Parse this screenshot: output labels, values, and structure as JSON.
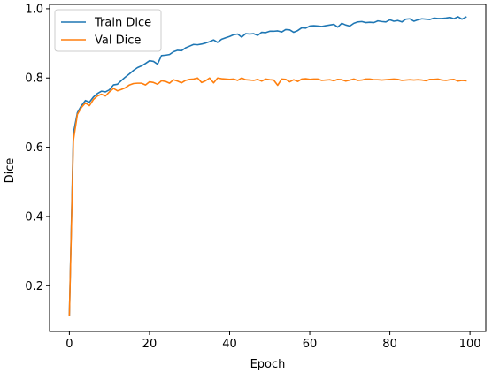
{
  "chart_data": {
    "type": "line",
    "title": "",
    "xlabel": "Epoch",
    "ylabel": "Dice",
    "xlim": [
      -4.95,
      103.95
    ],
    "ylim": [
      0.068,
      1.0125
    ],
    "xticks": [
      0,
      20,
      40,
      60,
      80,
      100
    ],
    "yticks": [
      0.2,
      0.4,
      0.6,
      0.8,
      1.0
    ],
    "ytick_labels": [
      "0.2",
      "0.4",
      "0.6",
      "0.8",
      "1.0"
    ],
    "grid": false,
    "legend_position": "upper-left",
    "x": [
      0,
      1,
      2,
      3,
      4,
      5,
      6,
      7,
      8,
      9,
      10,
      11,
      12,
      13,
      14,
      15,
      16,
      17,
      18,
      19,
      20,
      21,
      22,
      23,
      24,
      25,
      26,
      27,
      28,
      29,
      30,
      31,
      32,
      33,
      34,
      35,
      36,
      37,
      38,
      39,
      40,
      41,
      42,
      43,
      44,
      45,
      46,
      47,
      48,
      49,
      50,
      51,
      52,
      53,
      54,
      55,
      56,
      57,
      58,
      59,
      60,
      61,
      62,
      63,
      64,
      65,
      66,
      67,
      68,
      69,
      70,
      71,
      72,
      73,
      74,
      75,
      76,
      77,
      78,
      79,
      80,
      81,
      82,
      83,
      84,
      85,
      86,
      87,
      88,
      89,
      90,
      91,
      92,
      93,
      94,
      95,
      96,
      97,
      98,
      99
    ],
    "series": [
      {
        "name": "Train Dice",
        "color": "#1f77b4",
        "values": [
          0.115,
          0.64,
          0.7,
          0.72,
          0.735,
          0.73,
          0.745,
          0.755,
          0.762,
          0.76,
          0.766,
          0.78,
          0.782,
          0.793,
          0.803,
          0.812,
          0.822,
          0.83,
          0.835,
          0.842,
          0.85,
          0.848,
          0.84,
          0.865,
          0.866,
          0.868,
          0.876,
          0.88,
          0.879,
          0.887,
          0.892,
          0.897,
          0.896,
          0.898,
          0.901,
          0.905,
          0.91,
          0.903,
          0.912,
          0.916,
          0.92,
          0.925,
          0.927,
          0.918,
          0.928,
          0.927,
          0.928,
          0.923,
          0.932,
          0.931,
          0.935,
          0.935,
          0.936,
          0.933,
          0.94,
          0.939,
          0.932,
          0.937,
          0.945,
          0.944,
          0.95,
          0.951,
          0.95,
          0.949,
          0.951,
          0.953,
          0.955,
          0.947,
          0.958,
          0.953,
          0.95,
          0.958,
          0.962,
          0.963,
          0.96,
          0.961,
          0.96,
          0.965,
          0.963,
          0.962,
          0.968,
          0.964,
          0.966,
          0.962,
          0.97,
          0.971,
          0.964,
          0.968,
          0.971,
          0.97,
          0.969,
          0.973,
          0.972,
          0.972,
          0.973,
          0.975,
          0.971,
          0.977,
          0.97,
          0.976
        ]
      },
      {
        "name": "Val Dice",
        "color": "#ff7f0e",
        "values": [
          0.115,
          0.62,
          0.695,
          0.715,
          0.728,
          0.72,
          0.738,
          0.748,
          0.753,
          0.748,
          0.76,
          0.77,
          0.763,
          0.767,
          0.772,
          0.78,
          0.784,
          0.785,
          0.785,
          0.78,
          0.789,
          0.787,
          0.782,
          0.792,
          0.79,
          0.785,
          0.795,
          0.791,
          0.786,
          0.793,
          0.796,
          0.797,
          0.8,
          0.787,
          0.792,
          0.8,
          0.786,
          0.8,
          0.798,
          0.797,
          0.796,
          0.797,
          0.793,
          0.8,
          0.795,
          0.794,
          0.793,
          0.796,
          0.791,
          0.797,
          0.795,
          0.794,
          0.779,
          0.797,
          0.796,
          0.789,
          0.795,
          0.79,
          0.797,
          0.798,
          0.796,
          0.797,
          0.797,
          0.793,
          0.794,
          0.795,
          0.792,
          0.796,
          0.795,
          0.791,
          0.794,
          0.797,
          0.793,
          0.794,
          0.797,
          0.797,
          0.795,
          0.795,
          0.794,
          0.795,
          0.796,
          0.797,
          0.796,
          0.793,
          0.794,
          0.795,
          0.794,
          0.795,
          0.794,
          0.792,
          0.796,
          0.796,
          0.797,
          0.794,
          0.793,
          0.795,
          0.796,
          0.791,
          0.793,
          0.792
        ]
      }
    ]
  }
}
